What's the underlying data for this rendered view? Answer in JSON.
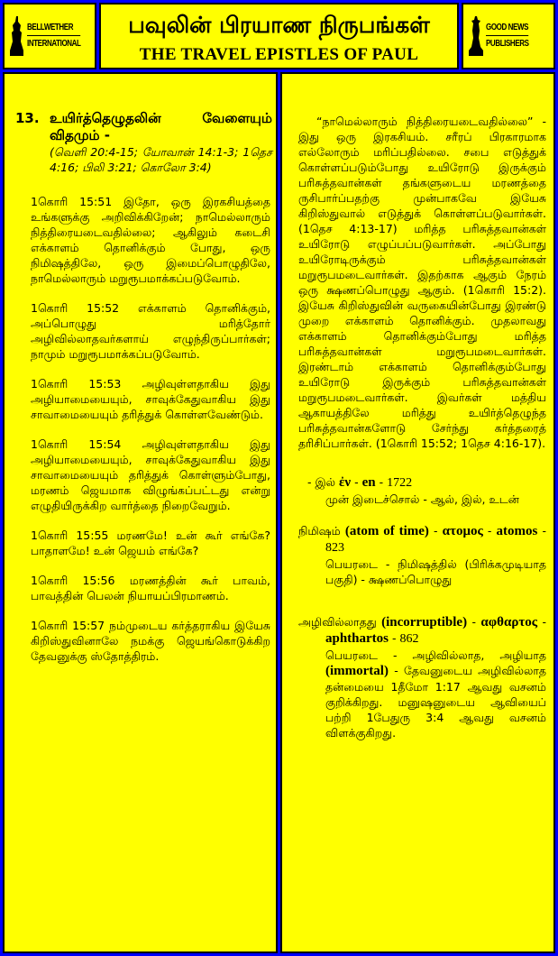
{
  "header": {
    "left_logo": {
      "line1": "BELLWETHER",
      "line2": "INTERNATIONAL",
      "icon": "bell-tower-icon"
    },
    "title_tamil": "பவுலின் பிரயாண நிருபங்கள்",
    "title_english": "THE TRAVEL EPISTLES OF PAUL",
    "right_logo": {
      "line1": "GOOD NEWS",
      "line2": "PUBLISHERS",
      "icon": "statue-icon"
    }
  },
  "left": {
    "number": "13.",
    "heading": "உயிர்த்தெழுதலின் வேளையும் விதமும் -",
    "refs": "(வெளி 20:4-15; யோவான் 14:1-3; 1தெச 4:16; பிலி 3:21; கொலோ 3:4)",
    "verses": [
      "1கொரி 15:51 இதோ, ஒரு இரகசியத்தை உங்களுக்கு அறிவிக்கிறேன்; நாமெல்லாரும் நித்திரையடைவதில்லை; ஆகிலும் கடைசி எக்காளம் தொனிக்கும் போது, ஒரு நிமிஷத்திலே, ஒரு இமைப்பொழுதிலே, நாமெல்லாரும் மறுரூபமாக்கப்படுவோம்.",
      "1கொரி 15:52 எக்காளம் தொனிக்கும், அப்பொழுது மரித்தோர் அழிவில்லாதவர்களாய் எழுந்திருப்பார்கள்; நாமும் மறுரூபமாக்கப்படுவோம்.",
      "1கொரி 15:53 அழிவுள்ளதாகிய இது அழியாமையையும், சாவுக்கேதுவாகிய இது சாவாமையையும் தரித்துக் கொள்ளவேண்டும்.",
      "1கொரி 15:54 அழிவுள்ளதாகிய இது அழியாமையையும், சாவுக்கேதுவாகிய இது சாவாமையையும் தரித்துக் கொள்ளும்போது, மரணம் ஜெயமாக விழுங்கப்பட்டது என்று எழுதியிருக்கிற வார்த்தை நிறைவேறும்.",
      "1கொரி 15:55 மரணமே! உன் கூர் எங்கே? பாதாளமே! உன் ஜெயம் எங்கே?",
      "1கொரி 15:56 மரணத்தின் கூர் பாவம், பாவத்தின் பெலன் நியாயப்பிரமாணம்.",
      "1கொரி 15:57 நம்முடைய கர்த்தராகிய இயேசு கிறிஸ்துவினாலே நமக்கு ஜெயங்கொடுக்கிற தேவனுக்கு ஸ்தோத்திரம்."
    ]
  },
  "right": {
    "intro": "“நாமெல்லாரும் நித்திரையடைவதில்லை” - இது ஒரு இரகசியம். சரீரப் பிரகாரமாக எல்லோரும் மரிப்பதில்லை. சபை எடுத்துக் கொள்ளப்படும்போது உயிரோடு இருக்கும் பரிசுத்தவான்கள் தங்களுடைய மரணத்தை ருசிபார்ப்பதற்கு முன்பாகவே இயேசு கிறிஸ்துவால் எடுத்துக் கொள்ளப்படுவார்கள். (1தெச 4:13-17) மரித்த பரிசுத்தவான்கள் உயிரோடு எழுப்பப்படுவார்கள். அப்போது உயிரோடிருக்கும் பரிசுத்தவான்கள் மறுரூபமடைவார்கள். இதற்காக ஆகும் நேரம் ஒரு க்ஷணப்பொழுது ஆகும். (1கொரி 15:2). இயேசு கிறிஸ்துவின் வருகையின்போது இரண்டு முறை எக்காளம் தொனிக்கும். முதலாவது எக்காளம் தொனிக்கும்போது மரித்த பரிசுத்தவான்கள் மறுரூபமடைவார்கள். இரண்டாம் எக்காளம் தொனிக்கும்போது உயிரோடு இருக்கும் பரிசுத்தவான்கள் மறுரூபமடைவார்கள். இவர்கள் மத்திய ஆகாயத்திலே மரித்து உயிர்த்தெழுந்த பரிசுத்தவான்களோடு சேர்ந்து கர்த்தரைத் தரிசிப்பார்கள். (1கொரி 15:52; 1தெச 4:16-17).",
    "entries": [
      {
        "tamil": "- இல்",
        "greek": "ἐν",
        "translit": "en",
        "number": "1722",
        "definition": "முன் இடைச்சொல் - ஆல், இல், உடன்"
      },
      {
        "tamil": "நிமிஷம்",
        "english": "(atom of time)",
        "greek": "ατομος",
        "translit": "atomos",
        "number": "823",
        "definition": "பெயரடை - நிமிஷத்தில் (பிரிக்கமுடியாத பகுதி) - க்ஷணப்பொழுது"
      },
      {
        "tamil": "அழிவில்லாதது",
        "english": "(incorruptible)",
        "greek": "αφθαρτος",
        "translit": "aphthartos",
        "number": "862",
        "definition_pre": "பெயரடை - அழிவில்லாத, அழியாத",
        "definition_bold": "(immortal)",
        "definition_post": "- தேவனுடைய அழிவில்லாத தன்மையை 1தீமோ 1:17 ஆவது வசனம் குறிக்கிறது. மனுஷனுடைய ஆவியைப் பற்றி 1பேதுரு 3:4 ஆவது வசனம் விளக்குகிறது."
      }
    ]
  },
  "colors": {
    "background": "#0000ff",
    "panel": "#ffff00",
    "text": "#000000"
  }
}
